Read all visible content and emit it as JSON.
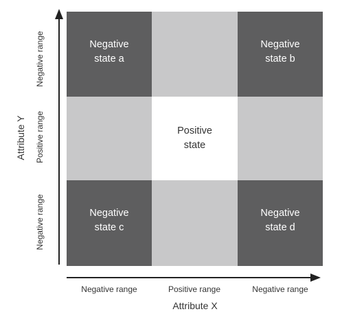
{
  "cells": {
    "top_left": "Negative\nstate a",
    "top_right": "Negative\nstate b",
    "center": "Positive\nstate",
    "bottom_left": "Negative\nstate c",
    "bottom_right": "Negative\nstate d"
  },
  "x_axis": {
    "title": "Attribute X",
    "labels": [
      "Negative range",
      "Positive range",
      "Negative range"
    ]
  },
  "y_axis": {
    "title": "Attribute Y",
    "labels_top_to_bottom": [
      "Negative range",
      "Positive range",
      "Negative range"
    ]
  },
  "colors": {
    "negative": "#5e5e5f",
    "neutral": "#c8c8c9",
    "positive": "#ffffff",
    "axis": "#222222"
  }
}
